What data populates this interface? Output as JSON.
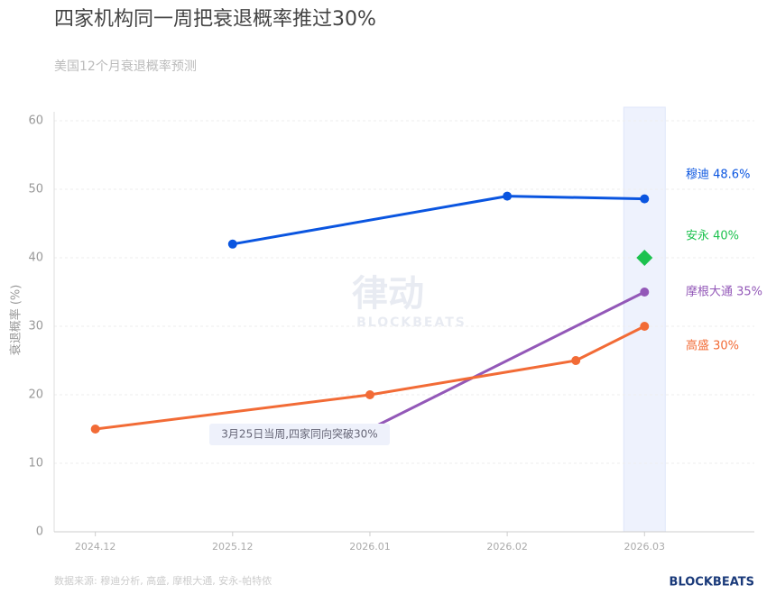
{
  "chart_data": {
    "type": "line",
    "title": "四家机构同一周把衰退概率推过30%",
    "subtitle": "美国12个月衰退概率预测",
    "y_label": "衰退概率 (%)",
    "xlim": [
      -0.3,
      4.8
    ],
    "xticks": [
      {
        "value": 0,
        "label": "2024.12"
      },
      {
        "value": 1,
        "label": "2025.12"
      },
      {
        "value": 2,
        "label": "2026.01"
      },
      {
        "value": 3,
        "label": "2026.02"
      },
      {
        "value": 4,
        "label": "2026.03"
      }
    ],
    "ylim": [
      0,
      60
    ],
    "yticks": [
      0,
      10,
      20,
      30,
      40,
      50,
      60
    ],
    "grid": true,
    "series": [
      {
        "name": "穆迪 48.6%",
        "color": "#0a55e0",
        "marker": "circle",
        "x": [
          1,
          3,
          4
        ],
        "values": [
          42,
          49,
          48.6
        ]
      },
      {
        "name": "安永 40%",
        "color": "#1dc24f",
        "marker": "diamond",
        "x": [
          4
        ],
        "values": [
          40
        ]
      },
      {
        "name": "摩根大通 35%",
        "color": "#9358b8",
        "marker": "circle",
        "x": [
          2,
          4
        ],
        "values": [
          15,
          35
        ]
      },
      {
        "name": "高盛 30%",
        "color": "#f26b36",
        "marker": "circle",
        "x": [
          0,
          2,
          3.5,
          4
        ],
        "values": [
          15,
          20,
          25,
          30
        ]
      }
    ],
    "highlight_x": 4,
    "annotation": "3月25日当周,四家同向突破30%",
    "watermark": [
      "律动",
      "BLOCKBEATS"
    ],
    "source": "数据来源: 穆迪分析, 高盛, 摩根大通, 安永-帕特侬",
    "brand": "BLOCKBEATS"
  }
}
